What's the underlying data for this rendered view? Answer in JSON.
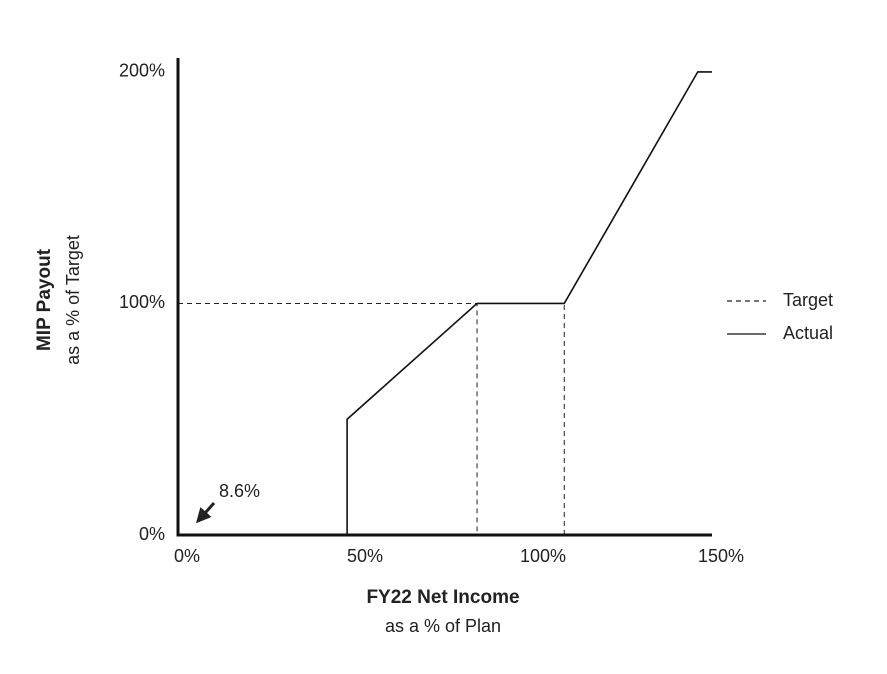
{
  "chart_data": {
    "type": "line",
    "x_label": [
      "FY22 Net Income",
      "as a % of Plan"
    ],
    "y_label": [
      "MIP Payout",
      "as a % of Target"
    ],
    "xlim": [
      0,
      150
    ],
    "ylim": [
      0,
      206
    ],
    "xticks": [
      {
        "value": 0,
        "label": "0%"
      },
      {
        "value": 50,
        "label": "50%"
      },
      {
        "value": 100,
        "label": "100%"
      },
      {
        "value": 150,
        "label": "150%"
      }
    ],
    "yticks": [
      {
        "value": 0,
        "label": "0%"
      },
      {
        "value": 100,
        "label": "100%"
      },
      {
        "value": 200,
        "label": "200%"
      }
    ],
    "series": [
      {
        "name": "Target",
        "color": "#222222",
        "dashed": true,
        "x": [
          0,
          84,
          84,
          null,
          108.5,
          108.5
        ],
        "values": [
          100,
          100,
          0,
          null,
          0,
          100
        ]
      },
      {
        "name": "Actual",
        "color": "#111111",
        "dashed": false,
        "x": [
          0,
          47.5,
          47.5,
          84,
          108.5,
          146,
          150
        ],
        "values": [
          0,
          0,
          50,
          100,
          100,
          200,
          200
        ]
      }
    ],
    "annotation": "8.6%",
    "legend": "right"
  }
}
